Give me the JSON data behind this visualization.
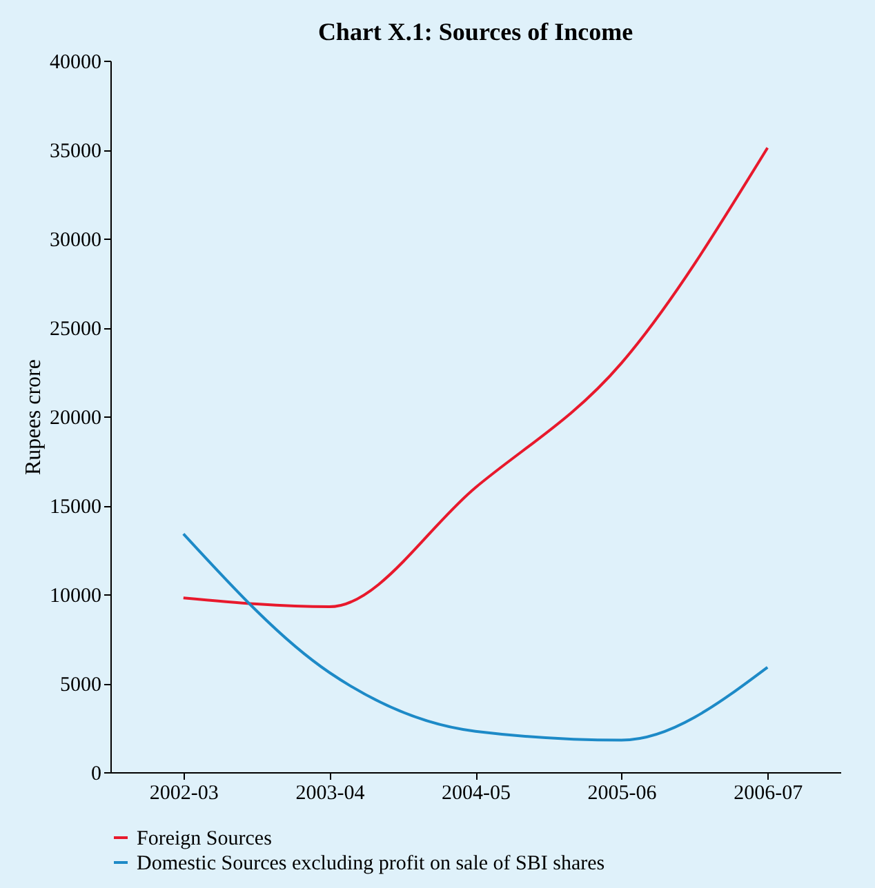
{
  "chart_data": {
    "type": "line",
    "title": "Chart X.1: Sources of Income",
    "ylabel": "Rupees crore",
    "categories": [
      "2002-03",
      "2003-04",
      "2004-05",
      "2005-06",
      "2006-07"
    ],
    "series": [
      {
        "name": "Foreign Sources",
        "color": "#e8192c",
        "values": [
          9800,
          9300,
          16000,
          23000,
          35100
        ]
      },
      {
        "name": "Domestic Sources excluding profit on sale of SBI shares",
        "color": "#1d8ac7",
        "values": [
          13400,
          5600,
          2300,
          1800,
          5900
        ]
      }
    ],
    "ylim": [
      0,
      40000
    ],
    "yticks": [
      0,
      5000,
      10000,
      15000,
      20000,
      25000,
      30000,
      35000,
      40000
    ],
    "grid": false,
    "legend": "bottom",
    "marker": "none",
    "line_style": "solid"
  }
}
